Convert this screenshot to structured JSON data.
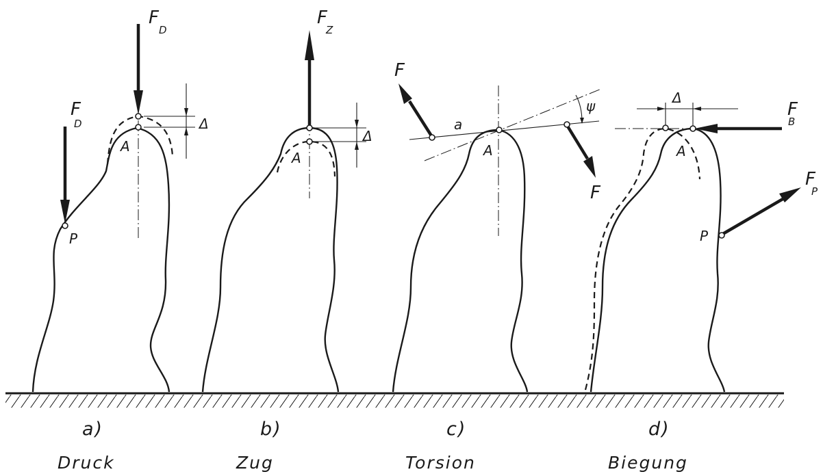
{
  "panels": [
    {
      "letter": "a)",
      "word": "Druck"
    },
    {
      "letter": "b)",
      "word": "Zug"
    },
    {
      "letter": "c)",
      "word": "Torsion"
    },
    {
      "letter": "d)",
      "word": "Biegung"
    }
  ],
  "labels": {
    "F": "F",
    "D": "D",
    "Z": "Z",
    "B": "B",
    "P": "P",
    "A": "A",
    "delta": "Δ",
    "psi": "ψ",
    "a": "a"
  }
}
